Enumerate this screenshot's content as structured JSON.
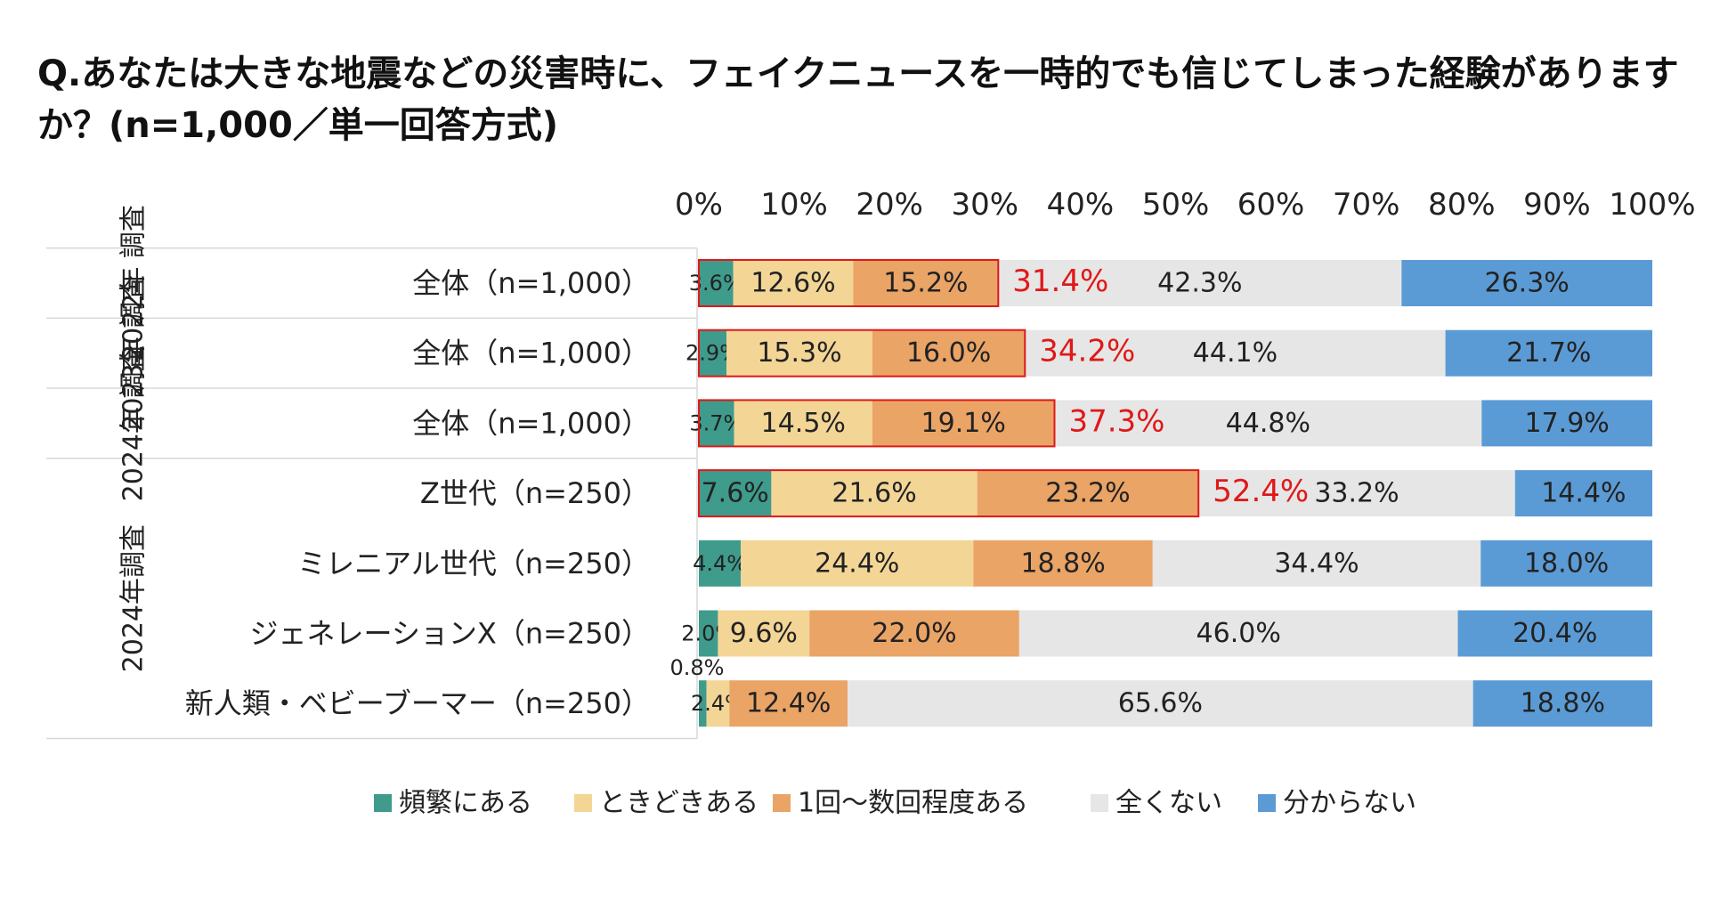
{
  "chart_data": {
    "type": "bar",
    "orientation": "horizontal-stacked-100",
    "title": "Q.あなたは大きな地震などの災害時に、フェイクニュースを一時的でも信じてしまった経験がありますか？(n=1,000／単一回答方式)",
    "x_ticks": [
      "0%",
      "10%",
      "20%",
      "30%",
      "40%",
      "50%",
      "60%",
      "70%",
      "80%",
      "90%",
      "100%"
    ],
    "xlim": [
      0,
      100
    ],
    "groups": [
      {
        "label": "2022年 調査",
        "rows": 1
      },
      {
        "label": "2023年 調査",
        "rows": 1
      },
      {
        "label": "2024年 調査",
        "rows": 1
      },
      {
        "label": "2024年調査",
        "rows": 4
      }
    ],
    "categories": [
      "全体（n=1,000）",
      "全体（n=1,000）",
      "全体（n=1,000）",
      "Z世代（n=250）",
      "ミレニアル世代（n=250）",
      "ジェネレーションX（n=250）",
      "新人類・ベビーブーマー（n=250）"
    ],
    "series": [
      {
        "name": "頻繁にある",
        "color": "#3f9b8c",
        "values": [
          3.6,
          2.9,
          3.7,
          7.6,
          4.4,
          2.0,
          0.8
        ],
        "labels": [
          "3.6%",
          "2.9%",
          "3.7%",
          "7.6%",
          "4.4%",
          "2.0%",
          "0.8%"
        ]
      },
      {
        "name": "ときどきある",
        "color": "#f3d596",
        "values": [
          12.6,
          15.3,
          14.5,
          21.6,
          24.4,
          9.6,
          2.4
        ],
        "labels": [
          "12.6%",
          "15.3%",
          "14.5%",
          "21.6%",
          "24.4%",
          "9.6%",
          "2.4%"
        ]
      },
      {
        "name": "1回～数回程度ある",
        "color": "#eaa466",
        "values": [
          15.2,
          16.0,
          19.1,
          23.2,
          18.8,
          22.0,
          12.4
        ],
        "labels": [
          "15.2%",
          "16.0%",
          "19.1%",
          "23.2%",
          "18.8%",
          "22.0%",
          "12.4%"
        ]
      },
      {
        "name": "全くない",
        "color": "#e6e6e6",
        "values": [
          42.3,
          44.1,
          44.8,
          33.2,
          34.4,
          46.0,
          65.6
        ],
        "labels": [
          "42.3%",
          "44.1%",
          "44.8%",
          "33.2%",
          "34.4%",
          "46.0%",
          "65.6%"
        ]
      },
      {
        "name": "分からない",
        "color": "#5b9bd5",
        "values": [
          26.3,
          21.7,
          17.9,
          14.4,
          18.0,
          20.4,
          18.8
        ],
        "labels": [
          "26.3%",
          "21.7%",
          "17.9%",
          "14.4%",
          "18.0%",
          "20.4%",
          "18.8%"
        ]
      }
    ],
    "totals": [
      {
        "row": 0,
        "value": 31.4,
        "label": "31.4%"
      },
      {
        "row": 1,
        "value": 34.2,
        "label": "34.2%"
      },
      {
        "row": 2,
        "value": 37.3,
        "label": "37.3%"
      },
      {
        "row": 3,
        "value": 52.4,
        "label": "52.4%"
      }
    ],
    "total_color": "#e01818",
    "legend_position": "bottom"
  }
}
